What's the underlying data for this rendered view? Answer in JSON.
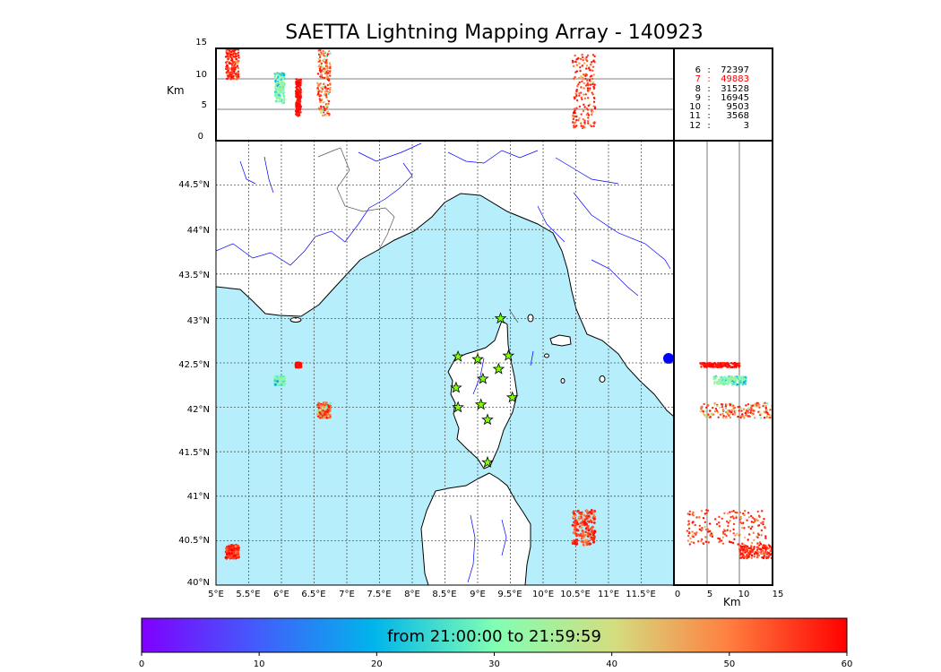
{
  "title": "SAETTA Lightning Mapping Array - 140923",
  "alt_axis_label": "Km",
  "alt_ticks": [
    "15",
    "10",
    "5",
    "0"
  ],
  "lat_ticks": [
    "44.5°N",
    "44°N",
    "43.5°N",
    "43°N",
    "42.5°N",
    "42°N",
    "41.5°N",
    "41°N",
    "40.5°N",
    "40°N"
  ],
  "lon_ticks": [
    "5°E",
    "5.5°E",
    "6°E",
    "6.5°E",
    "7°E",
    "7.5°E",
    "8°E",
    "8.5°E",
    "9°E",
    "9.5°E",
    "10°E",
    "10.5°E",
    "11°E",
    "11.5°E"
  ],
  "km_ticks": [
    "0",
    "5",
    "10",
    "15"
  ],
  "colorbar": {
    "label": "from 21:00:00 to 21:59:59",
    "ticks": [
      "0",
      "10",
      "20",
      "30",
      "40",
      "50",
      "60"
    ]
  },
  "station_counts": [
    {
      "level": "6",
      "count": "72397",
      "color": "#000000"
    },
    {
      "level": "7",
      "count": "49883",
      "color": "#ff0000"
    },
    {
      "level": "8",
      "count": "31528",
      "color": "#000000"
    },
    {
      "level": "9",
      "count": "16945",
      "color": "#000000"
    },
    {
      "level": "10",
      "count": "9503",
      "color": "#000000"
    },
    {
      "level": "11",
      "count": "3568",
      "color": "#000000"
    },
    {
      "level": "12",
      "count": "3",
      "color": "#000000"
    }
  ],
  "colors": {
    "sea": "#b6eefb",
    "coastline": "#000000",
    "rivers": "#0000ff",
    "borders": "#555555",
    "station_fill": "#7fff00",
    "grid": "#555555"
  },
  "map_extent": {
    "lon": [
      5,
      12
    ],
    "lat": [
      40,
      45
    ]
  },
  "station_marker": "star",
  "station_lonlat": [
    [
      9.35,
      43.0
    ],
    [
      8.7,
      42.57
    ],
    [
      9.0,
      42.54
    ],
    [
      9.47,
      42.58
    ],
    [
      9.32,
      42.43
    ],
    [
      9.08,
      42.32
    ],
    [
      8.67,
      42.22
    ],
    [
      9.53,
      42.11
    ],
    [
      9.05,
      42.03
    ],
    [
      8.7,
      42.0
    ],
    [
      9.15,
      41.86
    ],
    [
      9.15,
      41.38
    ]
  ],
  "lightning_clusters": [
    {
      "lon": [
        6.55,
        6.75
      ],
      "lat": [
        41.88,
        42.05
      ],
      "alt_km": [
        4,
        15
      ],
      "minutes": [
        20,
        60
      ]
    },
    {
      "lon": [
        10.45,
        10.8
      ],
      "lat": [
        40.45,
        40.85
      ],
      "alt_km": [
        2,
        14
      ],
      "minutes": [
        40,
        60
      ]
    },
    {
      "lon": [
        5.15,
        5.35
      ],
      "lat": [
        40.3,
        40.45
      ],
      "alt_km": [
        10,
        15
      ],
      "minutes": [
        45,
        60
      ]
    },
    {
      "lon": [
        5.9,
        6.05
      ],
      "lat": [
        42.25,
        42.35
      ],
      "alt_km": [
        6,
        11
      ],
      "minutes": [
        15,
        35
      ]
    },
    {
      "lon": [
        6.22,
        6.3
      ],
      "lat": [
        42.45,
        42.5
      ],
      "alt_km": [
        4,
        10
      ],
      "minutes": [
        55,
        60
      ]
    }
  ]
}
